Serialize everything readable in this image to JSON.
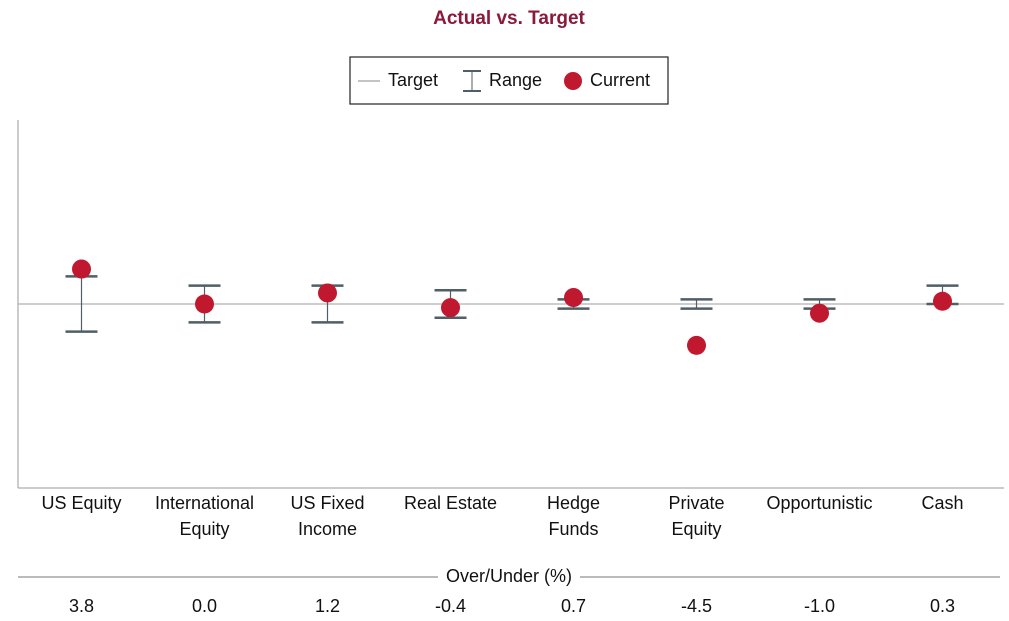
{
  "chart_data": {
    "type": "range-dot",
    "title": "Actual vs. Target",
    "categories": [
      "US Equity",
      "International\nEquity",
      "US Fixed\nIncome",
      "Real Estate",
      "Hedge\nFunds",
      "Private\nEquity",
      "Opportunistic",
      "Cash"
    ],
    "target": {
      "name": "Target",
      "value": 0,
      "color": "#b0b0b0"
    },
    "range": {
      "name": "Range",
      "color": "#4f5f66",
      "low": [
        -3,
        -2,
        -2,
        -1.5,
        -0.5,
        -0.5,
        -0.5,
        0
      ],
      "high": [
        3,
        2,
        2,
        1.5,
        0.5,
        0.5,
        0.5,
        2
      ]
    },
    "current": {
      "name": "Current",
      "color": "#c0182e",
      "values": [
        3.8,
        0.0,
        1.2,
        -0.4,
        0.7,
        -4.5,
        -1.0,
        0.3
      ],
      "value_labels": [
        "3.8",
        "0.0",
        "1.2",
        "-0.4",
        "0.7",
        "-4.5",
        "-1.0",
        "0.3"
      ]
    },
    "table_label": "Over/Under (%)",
    "ylim": [
      -20,
      20
    ]
  }
}
